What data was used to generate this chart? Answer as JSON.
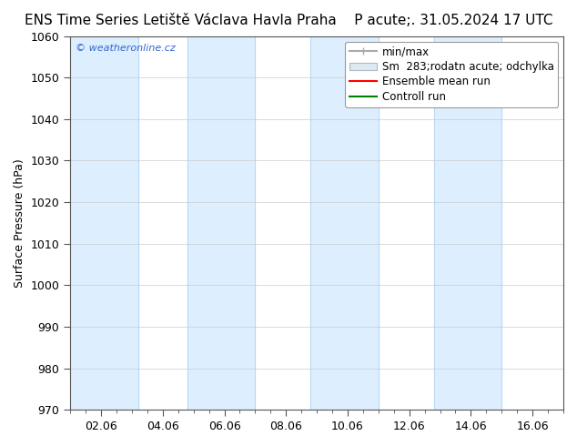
{
  "title": "ENS Time Series Letiště Václava Havla Praha",
  "title_right": "P acute;. 31.05.2024 17 UTC",
  "ylabel": "Surface Pressure (hPa)",
  "xlabel": "",
  "ylim": [
    970,
    1060
  ],
  "yticks": [
    970,
    980,
    990,
    1000,
    1010,
    1020,
    1030,
    1040,
    1050,
    1060
  ],
  "xtick_labels": [
    "02.06",
    "04.06",
    "06.06",
    "08.06",
    "10.06",
    "12.06",
    "14.06",
    "16.06"
  ],
  "watermark": "© weatheronline.cz",
  "legend_entries": [
    "min/max",
    "Sm  283;rodatn acute; odchylka",
    "Ensemble mean run",
    "Controll run"
  ],
  "band_color": "#ddeeff",
  "band_edge_color": "#aaccee",
  "background_color": "#ffffff",
  "band_positions": [
    0,
    2,
    4,
    6,
    8,
    10,
    12,
    14
  ],
  "ensemble_mean_color": "#ff0000",
  "control_run_color": "#008000",
  "minmax_color": "#aaaaaa",
  "shade_color": "#ccddf0",
  "title_fontsize": 11,
  "tick_fontsize": 9,
  "legend_fontsize": 8.5
}
